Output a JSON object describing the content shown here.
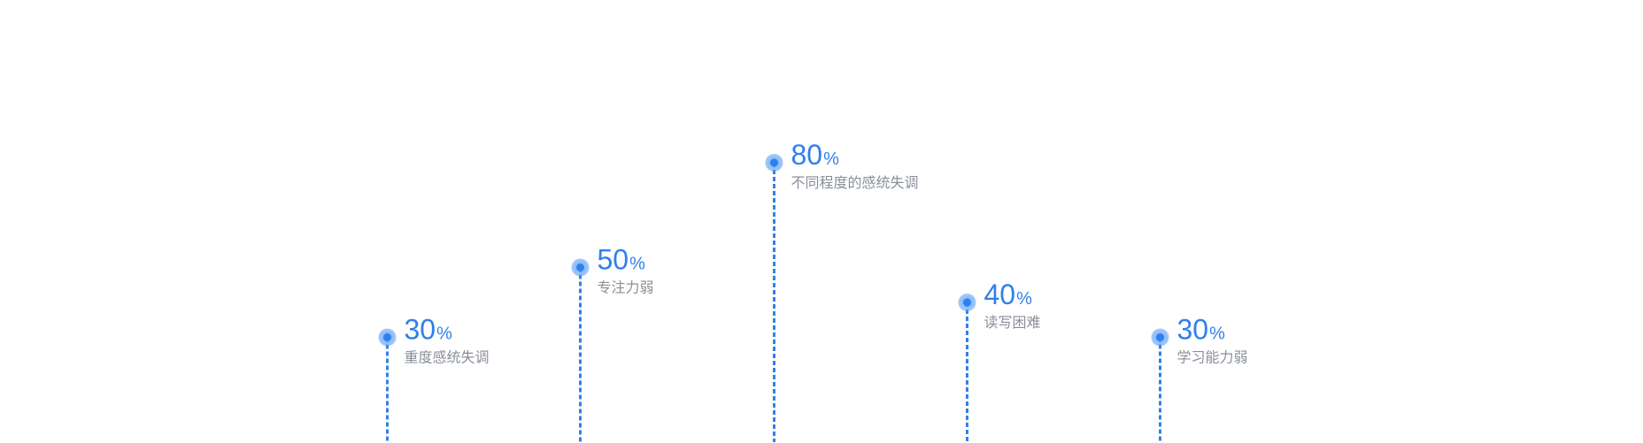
{
  "chart_data": {
    "type": "lollipop",
    "unit": "%",
    "ylim": [
      0,
      100
    ],
    "grid": true,
    "points": [
      {
        "label": "重度感统失调",
        "value": 30
      },
      {
        "label": "专注力弱",
        "value": 50
      },
      {
        "label": "不同程度的感统失调",
        "value": 80
      },
      {
        "label": "读写困难",
        "value": 40
      },
      {
        "label": "学习能力弱",
        "value": 30
      }
    ]
  },
  "colors": {
    "accent": "#2f80ed",
    "marker": "#5ea0f5",
    "label": "#8a8f99",
    "grid": "#a9c9f5"
  }
}
